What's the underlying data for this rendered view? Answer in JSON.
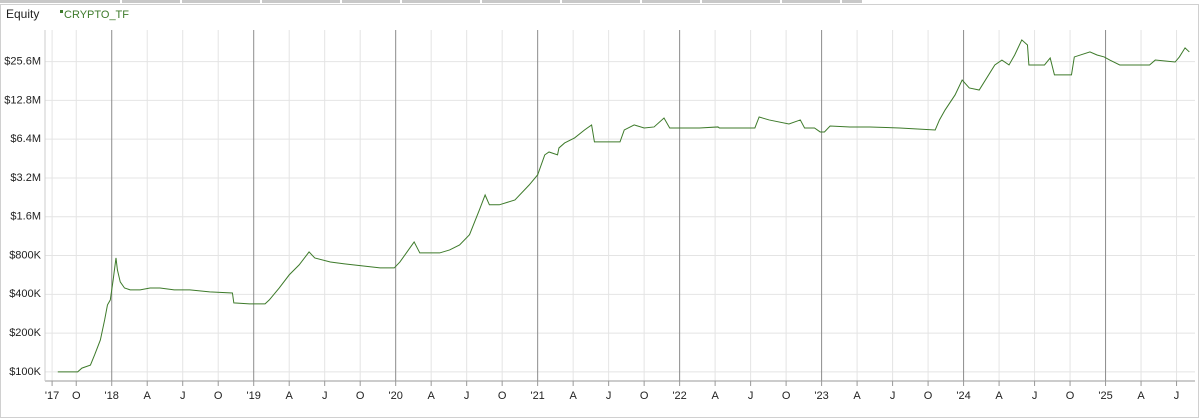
{
  "chart_data": {
    "type": "line",
    "title": "Equity",
    "log_scale": true,
    "grid": true,
    "xlim": [
      2017.53,
      2025.63
    ],
    "ylim": [
      85000,
      45000000
    ],
    "xticks": [
      {
        "value": 2017.58,
        "label": "'17"
      },
      {
        "value": 2017.75,
        "label": "O"
      },
      {
        "value": 2018,
        "label": "'18"
      },
      {
        "value": 2018.25,
        "label": "A"
      },
      {
        "value": 2018.5,
        "label": "J"
      },
      {
        "value": 2018.75,
        "label": "O"
      },
      {
        "value": 2019,
        "label": "'19"
      },
      {
        "value": 2019.25,
        "label": "A"
      },
      {
        "value": 2019.5,
        "label": "J"
      },
      {
        "value": 2019.75,
        "label": "O"
      },
      {
        "value": 2020,
        "label": "'20"
      },
      {
        "value": 2020.25,
        "label": "A"
      },
      {
        "value": 2020.5,
        "label": "J"
      },
      {
        "value": 2020.75,
        "label": "O"
      },
      {
        "value": 2021,
        "label": "'21"
      },
      {
        "value": 2021.25,
        "label": "A"
      },
      {
        "value": 2021.5,
        "label": "J"
      },
      {
        "value": 2021.75,
        "label": "O"
      },
      {
        "value": 2022,
        "label": "'22"
      },
      {
        "value": 2022.25,
        "label": "A"
      },
      {
        "value": 2022.5,
        "label": "J"
      },
      {
        "value": 2022.75,
        "label": "O"
      },
      {
        "value": 2023,
        "label": "'23"
      },
      {
        "value": 2023.25,
        "label": "A"
      },
      {
        "value": 2023.5,
        "label": "J"
      },
      {
        "value": 2023.75,
        "label": "O"
      },
      {
        "value": 2024,
        "label": "'24"
      },
      {
        "value": 2024.25,
        "label": "A"
      },
      {
        "value": 2024.5,
        "label": "J"
      },
      {
        "value": 2024.75,
        "label": "O"
      },
      {
        "value": 2025,
        "label": "'25"
      },
      {
        "value": 2025.25,
        "label": "A"
      },
      {
        "value": 2025.5,
        "label": "J"
      }
    ],
    "yticks": [
      {
        "value": 100000,
        "label": "$100K"
      },
      {
        "value": 200000,
        "label": "$200K"
      },
      {
        "value": 400000,
        "label": "$400K"
      },
      {
        "value": 800000,
        "label": "$800K"
      },
      {
        "value": 1600000,
        "label": "$1.6M"
      },
      {
        "value": 3200000,
        "label": "$3.2M"
      },
      {
        "value": 6400000,
        "label": "$6.4M"
      },
      {
        "value": 12800000,
        "label": "$12.8M"
      },
      {
        "value": 25600000,
        "label": "$25.6M"
      }
    ],
    "x": [
      2017.62,
      2017.76,
      2017.79,
      2017.85,
      2017.88,
      2017.92,
      2017.95,
      2017.97,
      2017.99,
      2018.01,
      2018.03,
      2018.04,
      2018.06,
      2018.09,
      2018.13,
      2018.2,
      2018.27,
      2018.34,
      2018.44,
      2018.55,
      2018.69,
      2018.85,
      2018.86,
      2018.97,
      2019.08,
      2019.11,
      2019.18,
      2019.25,
      2019.32,
      2019.39,
      2019.43,
      2019.54,
      2019.64,
      2019.89,
      2019.99,
      2020.03,
      2020.1,
      2020.13,
      2020.17,
      2020.31,
      2020.38,
      2020.45,
      2020.52,
      2020.59,
      2020.63,
      2020.66,
      2020.73,
      2020.84,
      2020.94,
      2021.0,
      2021.05,
      2021.08,
      2021.14,
      2021.15,
      2021.19,
      2021.26,
      2021.33,
      2021.38,
      2021.4,
      2021.58,
      2021.61,
      2021.68,
      2021.75,
      2021.82,
      2021.89,
      2021.93,
      2022.14,
      2022.27,
      2022.28,
      2022.53,
      2022.56,
      2022.63,
      2022.77,
      2022.85,
      2022.88,
      2022.95,
      2022.99,
      2023.02,
      2023.06,
      2023.2,
      2023.34,
      2023.55,
      2023.8,
      2023.83,
      2023.87,
      2023.94,
      2023.99,
      2024.04,
      2024.11,
      2024.22,
      2024.27,
      2024.32,
      2024.36,
      2024.41,
      2024.45,
      2024.46,
      2024.57,
      2024.61,
      2024.64,
      2024.76,
      2024.78,
      2024.89,
      2024.94,
      2024.99,
      2025.03,
      2025.1,
      2025.31,
      2025.35,
      2025.49,
      2025.52,
      2025.56,
      2025.59
    ],
    "series": [
      {
        "name": "CRYPTO_TF",
        "color": "#3d7a2a",
        "values": [
          100000,
          100000,
          107000,
          113000,
          136000,
          177000,
          253000,
          331000,
          362000,
          517000,
          766000,
          619000,
          499000,
          448000,
          433000,
          433000,
          448000,
          448000,
          433000,
          433000,
          418000,
          410000,
          343000,
          337000,
          337000,
          362000,
          448000,
          566000,
          677000,
          853000,
          766000,
          713000,
          689000,
          641000,
          641000,
          713000,
          916000,
          1020000,
          838000,
          838000,
          884000,
          967000,
          1160000,
          1810000,
          2360000,
          1980000,
          1980000,
          2160000,
          2820000,
          3380000,
          4830000,
          5090000,
          4830000,
          5470000,
          5980000,
          6540000,
          7540000,
          8250000,
          6090000,
          6090000,
          7540000,
          8250000,
          7820000,
          7960000,
          9340000,
          7820000,
          7820000,
          7960000,
          7820000,
          7820000,
          9510000,
          9020000,
          8400000,
          9020000,
          7820000,
          7820000,
          7280000,
          7280000,
          8100000,
          7960000,
          7960000,
          7820000,
          7540000,
          9020000,
          10790000,
          14100000,
          18400000,
          15980000,
          15400000,
          24100000,
          26300000,
          24100000,
          28800000,
          37700000,
          34400000,
          24100000,
          24100000,
          27300000,
          20200000,
          20200000,
          27800000,
          30400000,
          28800000,
          27800000,
          26300000,
          24100000,
          24100000,
          26300000,
          25400000,
          27800000,
          32700000,
          30400000
        ]
      }
    ]
  }
}
